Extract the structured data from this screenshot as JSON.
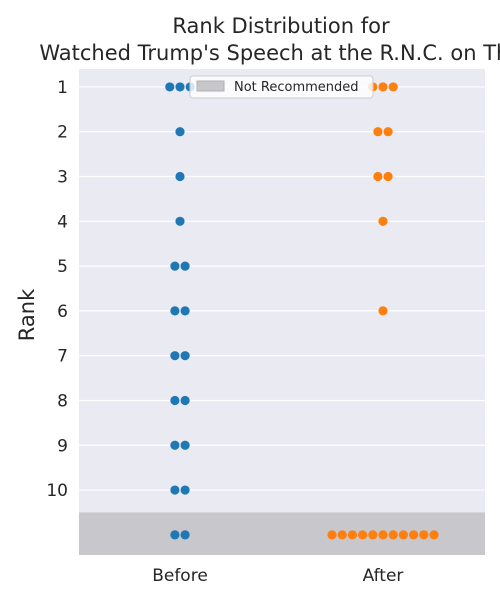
{
  "chart_data": {
    "type": "scatter",
    "subtype": "swarm",
    "title_lines": [
      "Rank Distribution for",
      "Watched Trump's Speech at the R.N.C. on Thu"
    ],
    "xlabel": "",
    "ylabel": "Rank",
    "categories": [
      "Before",
      "After"
    ],
    "y_ticks": [
      "1",
      "2",
      "3",
      "4",
      "5",
      "6",
      "7",
      "8",
      "9",
      "10"
    ],
    "ylim": [
      0.6,
      11.45
    ],
    "grid": true,
    "legend": {
      "placement": "top-center",
      "entries": [
        {
          "label": "Not Recommended",
          "color": "#c8c7cc"
        }
      ]
    },
    "not_recommended_band": [
      10.5,
      11.45
    ],
    "series": [
      {
        "category": "Before",
        "color": "#1f77b4",
        "points": [
          {
            "rank": 1,
            "count": 3
          },
          {
            "rank": 2,
            "count": 1
          },
          {
            "rank": 3,
            "count": 1
          },
          {
            "rank": 4,
            "count": 1
          },
          {
            "rank": 5,
            "count": 2
          },
          {
            "rank": 6,
            "count": 2
          },
          {
            "rank": 7,
            "count": 2
          },
          {
            "rank": 8,
            "count": 2
          },
          {
            "rank": 9,
            "count": 2
          },
          {
            "rank": 10,
            "count": 2
          },
          {
            "rank": "Not Recommended",
            "count": 2
          }
        ]
      },
      {
        "category": "After",
        "color": "#ff7f0e",
        "points": [
          {
            "rank": 1,
            "count": 3
          },
          {
            "rank": 2,
            "count": 2
          },
          {
            "rank": 3,
            "count": 2
          },
          {
            "rank": 4,
            "count": 1
          },
          {
            "rank": 6,
            "count": 1
          },
          {
            "rank": "Not Recommended",
            "count": 11
          }
        ]
      }
    ],
    "colors": {
      "plot_bg": "#eaeaf2",
      "grid": "#ffffff",
      "band": "#c8c7cc"
    }
  }
}
